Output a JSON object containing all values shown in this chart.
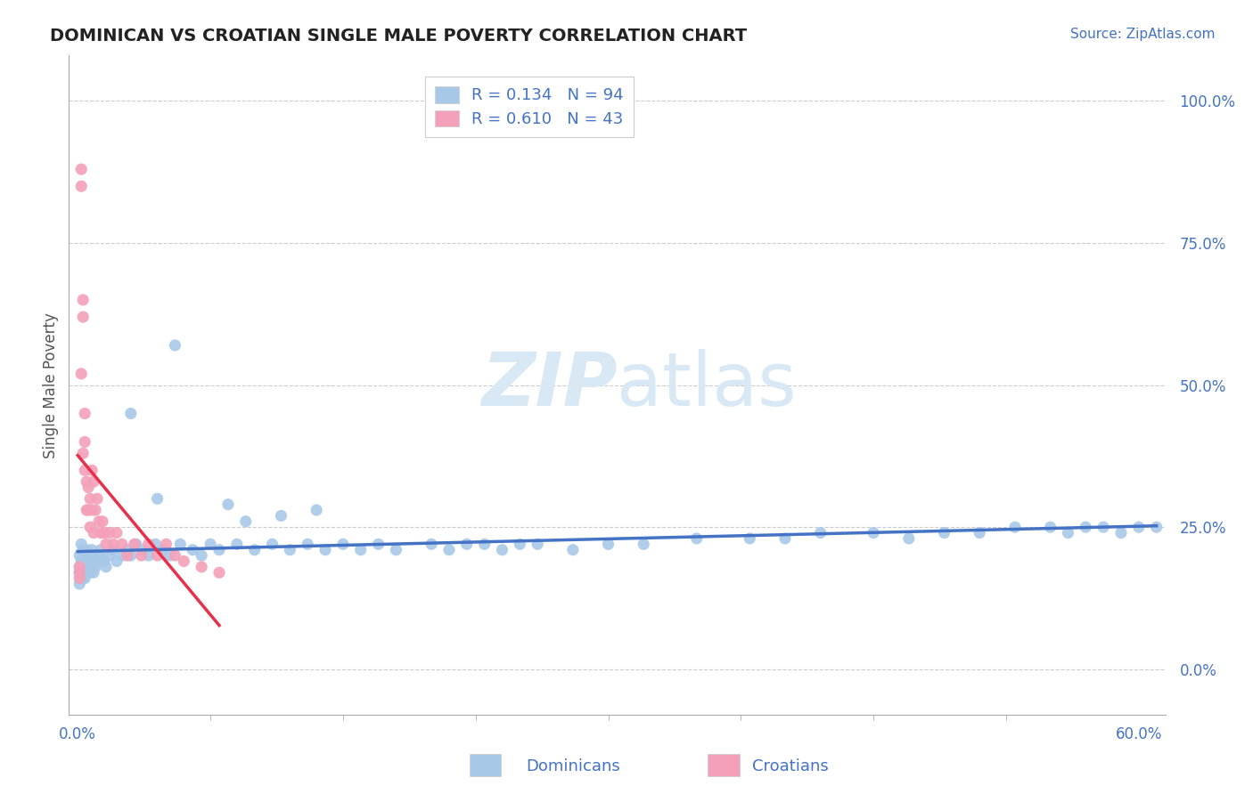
{
  "title": "DOMINICAN VS CROATIAN SINGLE MALE POVERTY CORRELATION CHART",
  "source": "Source: ZipAtlas.com",
  "xlabel_dominicans": "Dominicans",
  "xlabel_croatians": "Croatians",
  "ylabel": "Single Male Poverty",
  "r_dominican": 0.134,
  "n_dominican": 94,
  "r_croatian": 0.61,
  "n_croatian": 43,
  "xlim": [
    -0.005,
    0.615
  ],
  "ylim": [
    -0.08,
    1.08
  ],
  "yticks": [
    0.0,
    0.25,
    0.5,
    0.75,
    1.0
  ],
  "ytick_labels": [
    "0.0%",
    "25.0%",
    "50.0%",
    "75.0%",
    "100.0%"
  ],
  "xtick_left_label": "0.0%",
  "xtick_right_label": "60.0%",
  "color_dominican": "#A8C8E8",
  "color_croatian": "#F4A0B8",
  "line_color_dominican": "#4472C4",
  "line_color_croatian": "#E8304A",
  "bg_color": "#FFFFFF",
  "grid_color": "#CCCCCC",
  "title_color": "#222222",
  "axis_label_color": "#555555",
  "tick_color": "#4472C4",
  "watermark_color": "#D8E8F4",
  "legend_border_color": "#CCCCCC",
  "dom_scatter_x": [
    0.001,
    0.001,
    0.001,
    0.001,
    0.002,
    0.002,
    0.002,
    0.002,
    0.003,
    0.003,
    0.003,
    0.003,
    0.004,
    0.004,
    0.004,
    0.005,
    0.005,
    0.005,
    0.006,
    0.006,
    0.007,
    0.007,
    0.008,
    0.008,
    0.009,
    0.009,
    0.01,
    0.01,
    0.011,
    0.012,
    0.013,
    0.014,
    0.015,
    0.016,
    0.018,
    0.02,
    0.022,
    0.025,
    0.028,
    0.03,
    0.033,
    0.036,
    0.04,
    0.044,
    0.048,
    0.052,
    0.058,
    0.065,
    0.07,
    0.075,
    0.08,
    0.09,
    0.1,
    0.11,
    0.12,
    0.13,
    0.14,
    0.15,
    0.16,
    0.17,
    0.18,
    0.2,
    0.21,
    0.22,
    0.23,
    0.24,
    0.25,
    0.26,
    0.28,
    0.3,
    0.32,
    0.35,
    0.38,
    0.4,
    0.42,
    0.45,
    0.47,
    0.49,
    0.51,
    0.53,
    0.55,
    0.56,
    0.57,
    0.58,
    0.59,
    0.6,
    0.61,
    0.03,
    0.045,
    0.055,
    0.085,
    0.095,
    0.115,
    0.135
  ],
  "dom_scatter_y": [
    0.2,
    0.18,
    0.17,
    0.15,
    0.22,
    0.19,
    0.17,
    0.16,
    0.21,
    0.19,
    0.18,
    0.16,
    0.2,
    0.18,
    0.16,
    0.21,
    0.19,
    0.17,
    0.2,
    0.18,
    0.19,
    0.17,
    0.21,
    0.18,
    0.2,
    0.17,
    0.19,
    0.18,
    0.2,
    0.19,
    0.21,
    0.2,
    0.19,
    0.18,
    0.2,
    0.21,
    0.19,
    0.2,
    0.21,
    0.2,
    0.22,
    0.21,
    0.2,
    0.22,
    0.21,
    0.2,
    0.22,
    0.21,
    0.2,
    0.22,
    0.21,
    0.22,
    0.21,
    0.22,
    0.21,
    0.22,
    0.21,
    0.22,
    0.21,
    0.22,
    0.21,
    0.22,
    0.21,
    0.22,
    0.22,
    0.21,
    0.22,
    0.22,
    0.21,
    0.22,
    0.22,
    0.23,
    0.23,
    0.23,
    0.24,
    0.24,
    0.23,
    0.24,
    0.24,
    0.25,
    0.25,
    0.24,
    0.25,
    0.25,
    0.24,
    0.25,
    0.25,
    0.45,
    0.3,
    0.57,
    0.29,
    0.26,
    0.27,
    0.28
  ],
  "cro_scatter_x": [
    0.001,
    0.001,
    0.001,
    0.002,
    0.002,
    0.002,
    0.003,
    0.003,
    0.003,
    0.004,
    0.004,
    0.004,
    0.005,
    0.005,
    0.006,
    0.006,
    0.007,
    0.007,
    0.008,
    0.008,
    0.009,
    0.009,
    0.01,
    0.011,
    0.012,
    0.013,
    0.014,
    0.015,
    0.016,
    0.018,
    0.02,
    0.022,
    0.025,
    0.028,
    0.032,
    0.036,
    0.04,
    0.045,
    0.05,
    0.055,
    0.06,
    0.07,
    0.08
  ],
  "cro_scatter_y": [
    0.18,
    0.17,
    0.16,
    0.85,
    0.88,
    0.52,
    0.65,
    0.62,
    0.38,
    0.45,
    0.4,
    0.35,
    0.33,
    0.28,
    0.32,
    0.28,
    0.3,
    0.25,
    0.35,
    0.28,
    0.33,
    0.24,
    0.28,
    0.3,
    0.26,
    0.24,
    0.26,
    0.24,
    0.22,
    0.24,
    0.22,
    0.24,
    0.22,
    0.2,
    0.22,
    0.2,
    0.22,
    0.2,
    0.22,
    0.2,
    0.19,
    0.18,
    0.17
  ]
}
